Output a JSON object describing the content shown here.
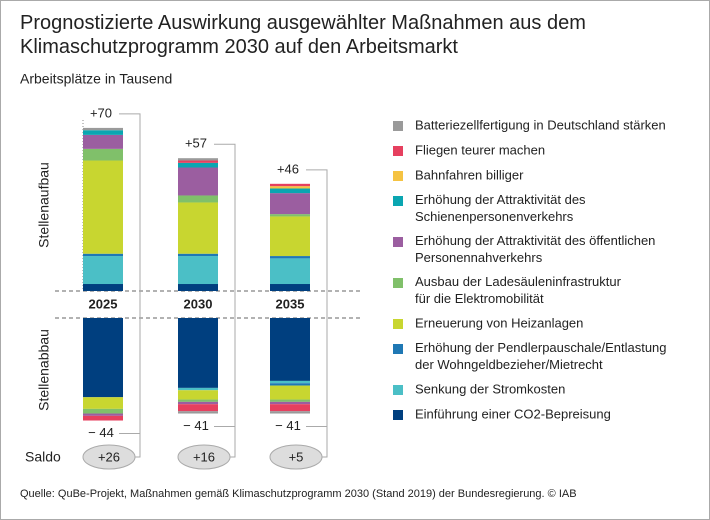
{
  "chart_data": {
    "type": "bar",
    "title": "Prognostizierte Auswirkung ausgewählter Maßnahmen aus dem\nKlimaschutzprogramm 2030 auf den Arbeitsmarkt",
    "subtitle": "Arbeitsplätze in Tausend",
    "categories": [
      "2025",
      "2030",
      "2035"
    ],
    "gain_label": "Stellenaufbau",
    "loss_label": "Stellenabbau",
    "saldo_label": "Saldo",
    "source": "Quelle: QuBe-Projekt, Maßnahmen gemäß Klimaschutzprogramm 2030 (Stand 2019) der Bundesregierung. © IAB",
    "series": [
      {
        "name": "Batteriezellfertigung in Deutschland stärken",
        "color": "#9a9a9a",
        "values": [
          1,
          1,
          0
        ],
        "loss_values": [
          0,
          -1,
          -1
        ]
      },
      {
        "name": "Fliegen teurer machen",
        "color": "#e6405f",
        "values": [
          0,
          1,
          1
        ],
        "loss_values": [
          -2,
          -3,
          -3
        ]
      },
      {
        "name": "Bahnfahren billiger",
        "color": "#f5c342",
        "values": [
          0,
          0,
          1
        ],
        "loss_values": [
          0,
          0,
          0
        ]
      },
      {
        "name": "Erhöhung der Attraktivität des\nSchienenpersonenverkehrs",
        "color": "#0aa6b1",
        "values": [
          2,
          2,
          2
        ],
        "loss_values": [
          0,
          0,
          0
        ]
      },
      {
        "name": "Erhöhung der Attraktivität des öffentlichen\nPersonennahverkehrs",
        "color": "#9b5ea0",
        "values": [
          6,
          12,
          9
        ],
        "loss_values": [
          -1,
          -1,
          -1
        ]
      },
      {
        "name": "Ausbau der Ladesäuleninfrastruktur\nfür die Elektromobilität",
        "color": "#80c06a",
        "values": [
          5,
          3,
          1
        ],
        "loss_values": [
          -2,
          -1,
          -1
        ]
      },
      {
        "name": "Erneuerung von Heizanlagen",
        "color": "#c8d630",
        "values": [
          40,
          22,
          17
        ],
        "loss_values": [
          -5,
          -4,
          -6
        ]
      },
      {
        "name": "Erhöhung der Pendlerpauschale/Entlastung\nder Wohngeldbezieher/Mietrecht",
        "color": "#1f78b4",
        "values": [
          1,
          1,
          1
        ],
        "loss_values": [
          0,
          0,
          -1
        ]
      },
      {
        "name": "Senkung der Stromkosten",
        "color": "#4bbfc6",
        "values": [
          12,
          12,
          11
        ],
        "loss_values": [
          0,
          -1,
          -1
        ]
      },
      {
        "name": "Einführung einer CO2-Bepreisung",
        "color": "#003f7f",
        "values": [
          3,
          3,
          3
        ],
        "loss_values": [
          -34,
          -30,
          -27
        ]
      }
    ],
    "gain_totals": {
      "values": [
        70,
        57,
        46
      ],
      "value_labels": [
        "+70",
        "+57",
        "+46"
      ]
    },
    "loss_totals": {
      "values": [
        -44,
        -41,
        -41
      ],
      "value_labels": [
        "− 44",
        "− 41",
        "− 41"
      ]
    },
    "saldo": {
      "values": [
        26,
        16,
        5
      ],
      "value_labels": [
        "+26",
        "+16",
        "+5"
      ]
    }
  }
}
